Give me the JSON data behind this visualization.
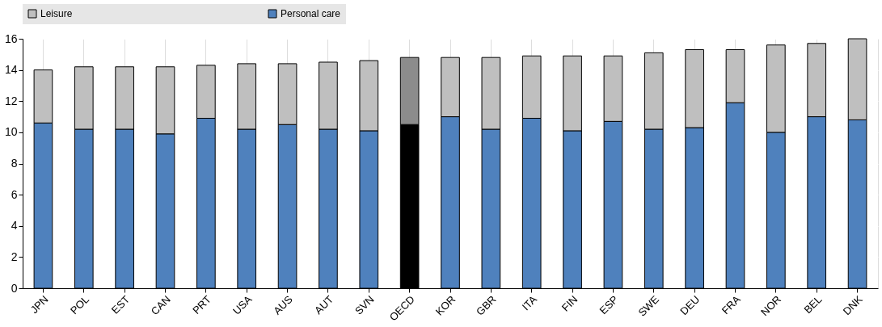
{
  "chart_data": {
    "type": "bar",
    "stacked": true,
    "categories": [
      "JPN",
      "POL",
      "EST",
      "CAN",
      "PRT",
      "USA",
      "AUS",
      "AUT",
      "SVN",
      "OECD",
      "KOR",
      "GBR",
      "ITA",
      "FIN",
      "ESP",
      "SWE",
      "DEU",
      "FRA",
      "NOR",
      "BEL",
      "DNK"
    ],
    "series": [
      {
        "name": "Personal care",
        "color": "#4f81bd",
        "colors": [
          "#4f81bd",
          "#4f81bd",
          "#4f81bd",
          "#4f81bd",
          "#4f81bd",
          "#4f81bd",
          "#4f81bd",
          "#4f81bd",
          "#4f81bd",
          "#000000",
          "#4f81bd",
          "#4f81bd",
          "#4f81bd",
          "#4f81bd",
          "#4f81bd",
          "#4f81bd",
          "#4f81bd",
          "#4f81bd",
          "#4f81bd",
          "#4f81bd",
          "#4f81bd"
        ],
        "values": [
          10.6,
          10.2,
          10.2,
          9.9,
          10.9,
          10.2,
          10.5,
          10.2,
          10.1,
          10.5,
          11.0,
          10.2,
          10.9,
          10.1,
          10.7,
          10.2,
          10.3,
          11.9,
          10.0,
          11.0,
          10.8
        ]
      },
      {
        "name": "Leisure",
        "color": "#bfbfbf",
        "colors": [
          "#bfbfbf",
          "#bfbfbf",
          "#bfbfbf",
          "#bfbfbf",
          "#bfbfbf",
          "#bfbfbf",
          "#bfbfbf",
          "#bfbfbf",
          "#bfbfbf",
          "#8c8c8c",
          "#bfbfbf",
          "#bfbfbf",
          "#bfbfbf",
          "#bfbfbf",
          "#bfbfbf",
          "#bfbfbf",
          "#bfbfbf",
          "#bfbfbf",
          "#bfbfbf",
          "#bfbfbf",
          "#bfbfbf"
        ],
        "values": [
          3.4,
          4.0,
          4.0,
          4.3,
          3.4,
          4.2,
          3.9,
          4.3,
          4.5,
          4.3,
          3.8,
          4.6,
          4.0,
          4.8,
          4.2,
          4.9,
          5.0,
          3.4,
          5.6,
          4.7,
          5.2
        ]
      }
    ],
    "ylim": [
      0,
      16
    ],
    "yticks": [
      0,
      2,
      4,
      6,
      8,
      10,
      12,
      14,
      16
    ],
    "grid": true,
    "legend": "top"
  }
}
